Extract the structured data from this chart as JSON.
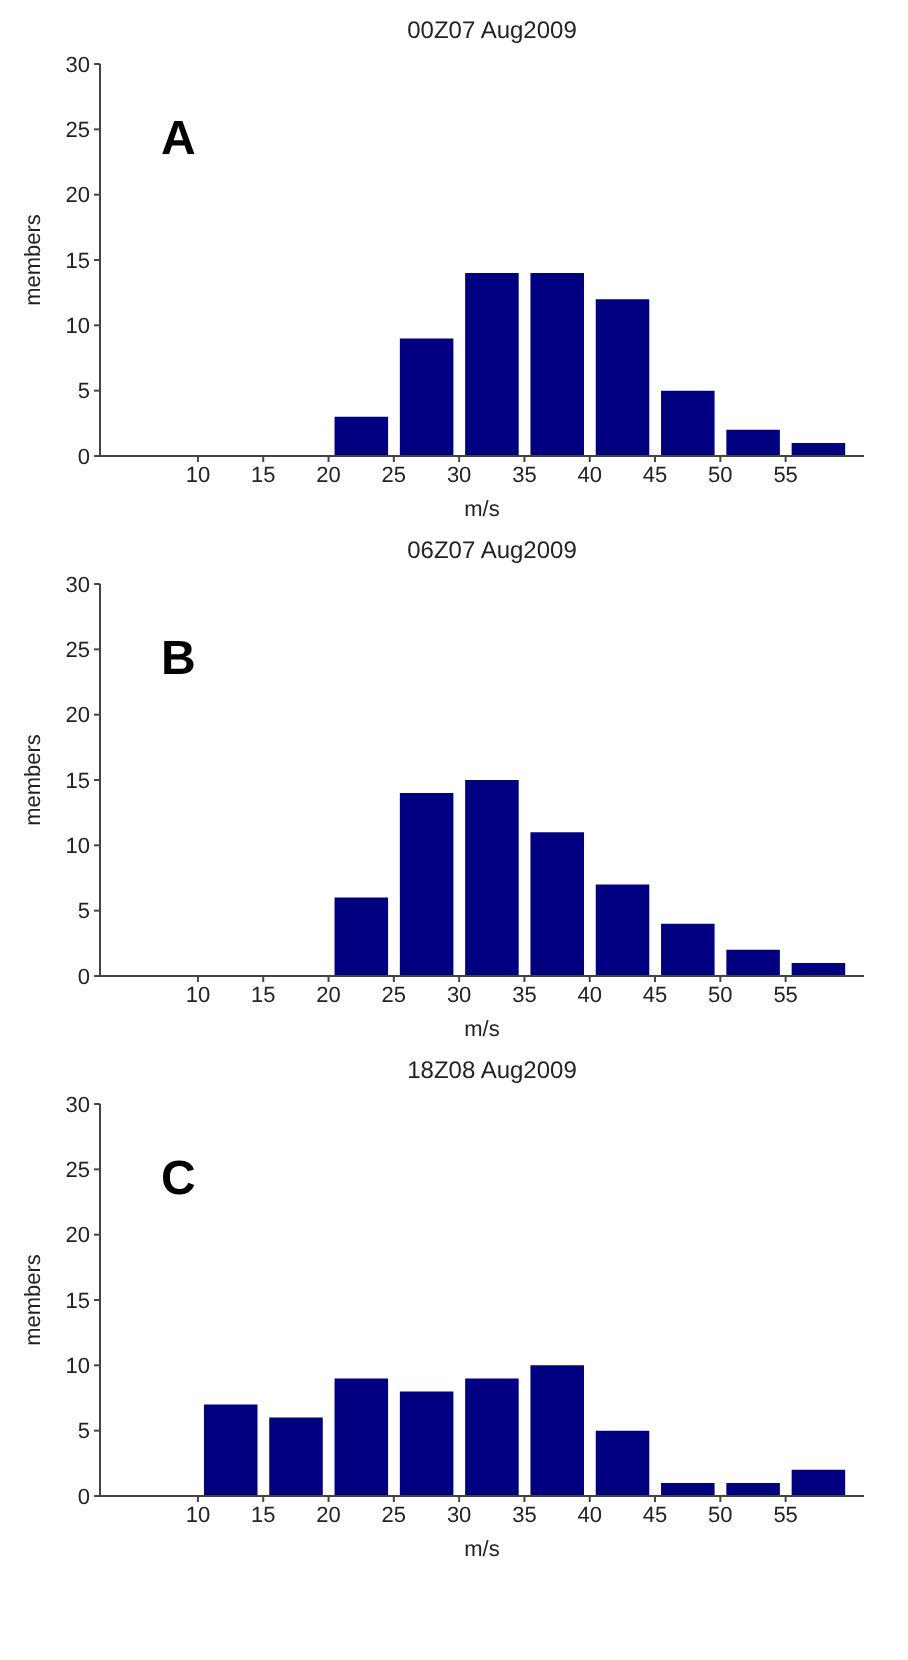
{
  "chart_data": [
    {
      "type": "histogram",
      "title": "00Z07 Aug2009",
      "xlabel": "m/s",
      "ylabel": "members",
      "annotations": [
        "A"
      ],
      "bins": [
        20,
        25,
        30,
        35,
        40,
        45,
        50,
        55,
        60
      ],
      "values": [
        3,
        9,
        14,
        14,
        12,
        5,
        2,
        1
      ],
      "color": "#000080",
      "xlim": [
        2.5,
        61
      ],
      "xticks": [
        10,
        15,
        20,
        25,
        30,
        35,
        40,
        45,
        50,
        55
      ],
      "ylim": [
        0,
        30
      ],
      "yticks": [
        0,
        5,
        10,
        15,
        20,
        25,
        30
      ],
      "grid": false
    },
    {
      "type": "histogram",
      "title": "06Z07 Aug2009",
      "xlabel": "m/s",
      "ylabel": "members",
      "annotations": [
        "B"
      ],
      "bins": [
        20,
        25,
        30,
        35,
        40,
        45,
        50,
        55,
        60
      ],
      "values": [
        6,
        14,
        15,
        11,
        7,
        4,
        2,
        1
      ],
      "color": "#000080",
      "xlim": [
        2.5,
        61
      ],
      "xticks": [
        10,
        15,
        20,
        25,
        30,
        35,
        40,
        45,
        50,
        55
      ],
      "ylim": [
        0,
        30
      ],
      "yticks": [
        0,
        5,
        10,
        15,
        20,
        25,
        30
      ],
      "grid": false
    },
    {
      "type": "histogram",
      "title": "18Z08 Aug2009",
      "xlabel": "m/s",
      "ylabel": "members",
      "annotations": [
        "C"
      ],
      "bins": [
        10,
        15,
        20,
        25,
        30,
        35,
        40,
        45,
        50,
        55,
        60
      ],
      "values": [
        7,
        6,
        9,
        8,
        9,
        10,
        5,
        1,
        1,
        2
      ],
      "color": "#000080",
      "xlim": [
        2.5,
        61
      ],
      "xticks": [
        10,
        15,
        20,
        25,
        30,
        35,
        40,
        45,
        50,
        55
      ],
      "ylim": [
        0,
        30
      ],
      "yticks": [
        0,
        5,
        10,
        15,
        20,
        25,
        30
      ],
      "grid": false
    }
  ]
}
